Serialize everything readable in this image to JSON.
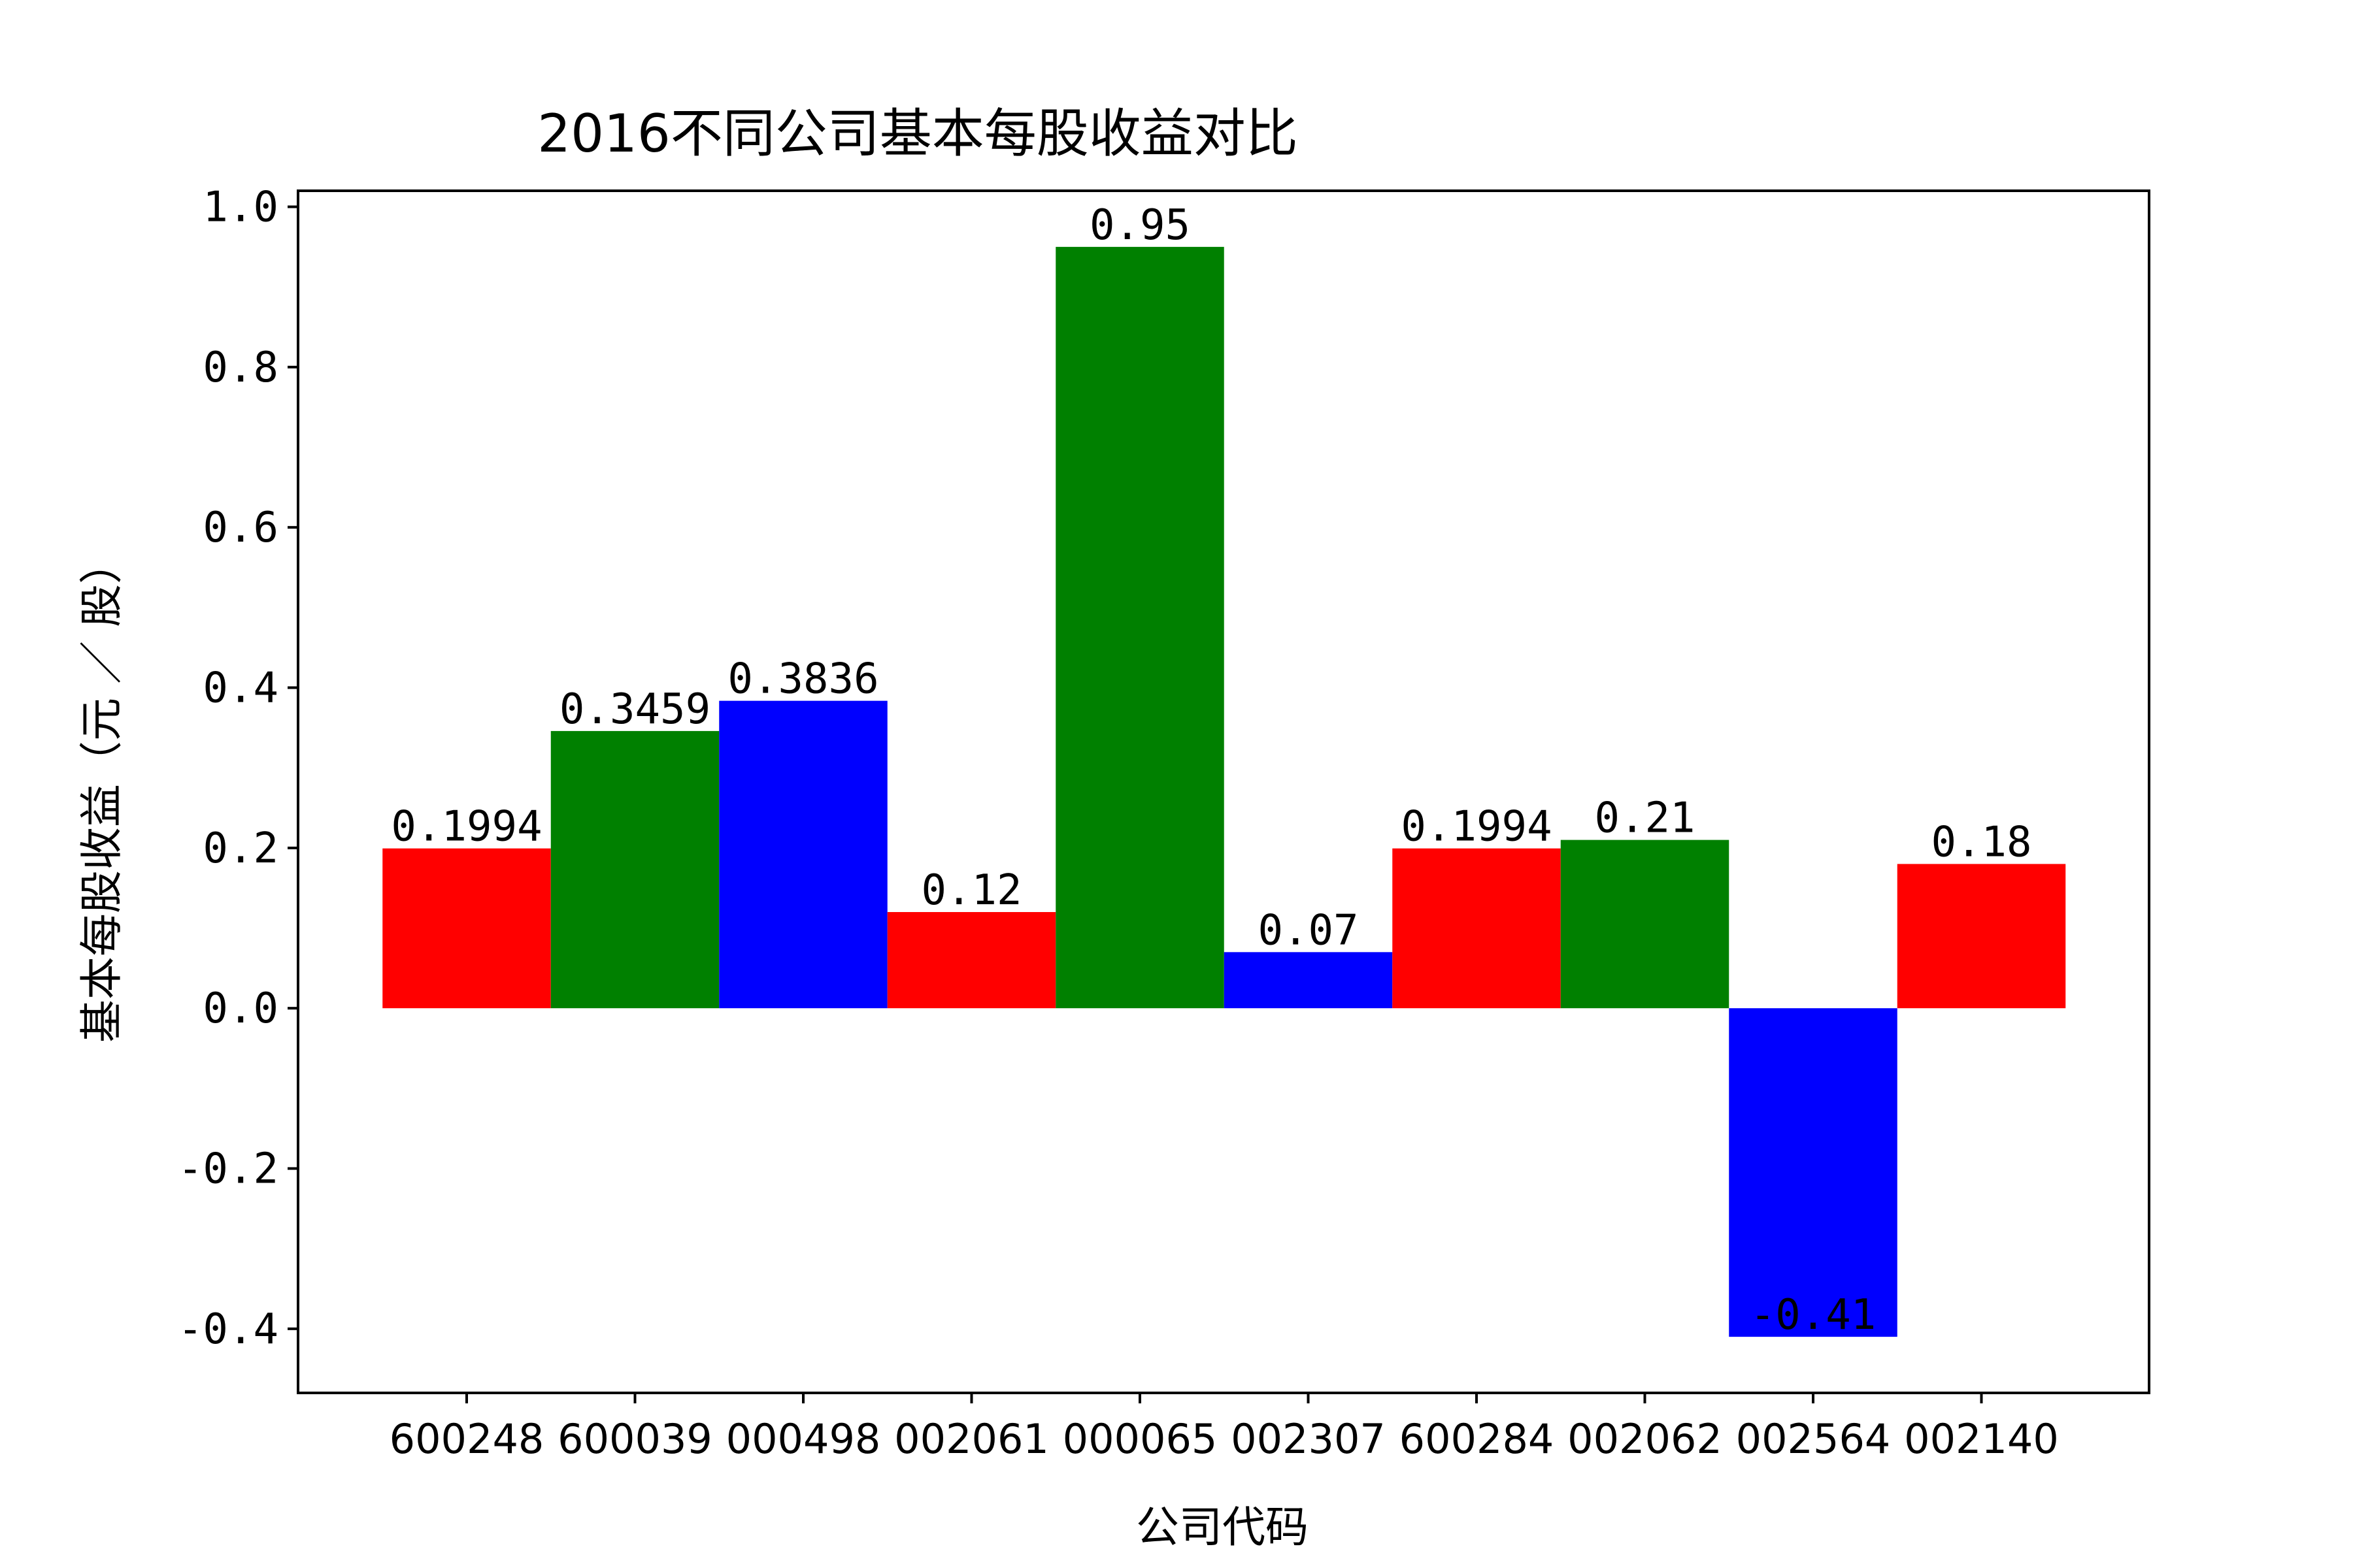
{
  "chart_data": {
    "type": "bar",
    "title": "2016不同公司基本每股收益对比",
    "xlabel": "公司代码",
    "ylabel": "基本每股收益（元 ／ 股）",
    "categories": [
      "600248",
      "600039",
      "000498",
      "002061",
      "000065",
      "002307",
      "600284",
      "002062",
      "002564",
      "002140"
    ],
    "values": [
      0.1994,
      0.3459,
      0.3836,
      0.12,
      0.95,
      0.07,
      0.1994,
      0.21,
      -0.41,
      0.18
    ],
    "value_labels": [
      "0.1994",
      "0.3459",
      "0.3836",
      "0.12",
      "0.95",
      "0.07",
      "0.1994",
      "0.21",
      "-0.41",
      "0.18"
    ],
    "bar_colors": [
      "#ff0000",
      "#008000",
      "#0000ff",
      "#ff0000",
      "#008000",
      "#0000ff",
      "#ff0000",
      "#008000",
      "#0000ff",
      "#ff0000"
    ],
    "yticks": [
      -0.4,
      -0.2,
      0.0,
      0.2,
      0.4,
      0.6,
      0.8,
      1.0
    ],
    "ytick_labels": [
      "-0.4",
      "-0.2",
      "0.0",
      "0.2",
      "0.4",
      "0.6",
      "0.8",
      "1.0"
    ],
    "ylim": [
      -0.48,
      1.02
    ],
    "grid": false,
    "legend": "none"
  }
}
